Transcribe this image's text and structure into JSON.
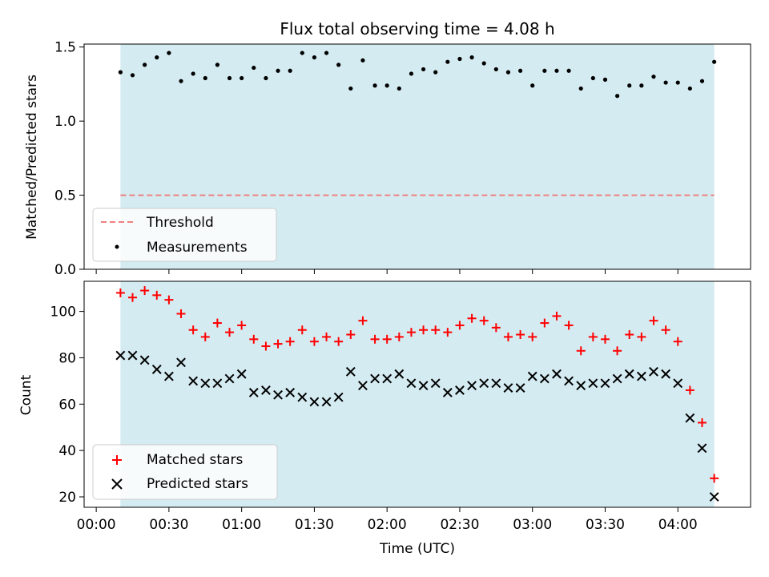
{
  "chart_data": [
    {
      "type": "scatter",
      "title": "Flux total observing time = 4.08 h",
      "xlabel": "",
      "ylabel": "Matched/Predicted stars",
      "ylim": [
        0,
        1.52
      ],
      "yticks": [
        0.0,
        0.5,
        1.0,
        1.5
      ],
      "ytick_labels": [
        "0.0",
        "0.5",
        "1.0",
        "1.5"
      ],
      "grid": false,
      "legend": "lower-left",
      "shaded_region": {
        "x": [
          10,
          255
        ],
        "color": "#d4ebf1"
      },
      "threshold": {
        "name": "Threshold",
        "y": 0.5,
        "x_range": [
          10,
          255
        ],
        "color": "#f08080",
        "style": "dashed"
      },
      "series": [
        {
          "name": "Measurements",
          "marker": "dot",
          "color": "#000000",
          "x": [
            10,
            15,
            20,
            25,
            30,
            35,
            40,
            45,
            50,
            55,
            60,
            65,
            70,
            75,
            80,
            85,
            90,
            95,
            100,
            105,
            110,
            115,
            120,
            125,
            130,
            135,
            140,
            145,
            150,
            155,
            160,
            165,
            170,
            175,
            180,
            185,
            190,
            195,
            200,
            205,
            210,
            215,
            220,
            225,
            230,
            235,
            240,
            245,
            250,
            255
          ],
          "y": [
            1.33,
            1.31,
            1.38,
            1.43,
            1.46,
            1.27,
            1.32,
            1.29,
            1.38,
            1.29,
            1.29,
            1.36,
            1.29,
            1.34,
            1.34,
            1.46,
            1.43,
            1.46,
            1.38,
            1.22,
            1.41,
            1.24,
            1.24,
            1.22,
            1.32,
            1.35,
            1.33,
            1.4,
            1.42,
            1.43,
            1.39,
            1.35,
            1.33,
            1.34,
            1.24,
            1.34,
            1.34,
            1.34,
            1.22,
            1.29,
            1.28,
            1.17,
            1.24,
            1.24,
            1.3,
            1.26,
            1.26,
            1.22,
            1.27,
            1.4
          ]
        }
      ]
    },
    {
      "type": "scatter",
      "title": "",
      "xlabel": "Time (UTC)",
      "ylabel": "Count",
      "ylim": [
        15.5,
        113
      ],
      "yticks": [
        20,
        40,
        60,
        80,
        100
      ],
      "ytick_labels": [
        "20",
        "40",
        "60",
        "80",
        "100"
      ],
      "xlim": [
        -5,
        270
      ],
      "xticks": [
        0,
        30,
        60,
        90,
        120,
        150,
        180,
        210,
        240
      ],
      "xtick_labels": [
        "00:00",
        "00:30",
        "01:00",
        "01:30",
        "02:00",
        "02:30",
        "03:00",
        "03:30",
        "04:00"
      ],
      "grid": false,
      "legend": "lower-left",
      "shaded_region": {
        "x": [
          10,
          255
        ],
        "color": "#d4ebf1"
      },
      "series": [
        {
          "name": "Matched stars",
          "marker": "plus",
          "color": "#ff0000",
          "x": [
            10,
            15,
            20,
            25,
            30,
            35,
            40,
            45,
            50,
            55,
            60,
            65,
            70,
            75,
            80,
            85,
            90,
            95,
            100,
            105,
            110,
            115,
            120,
            125,
            130,
            135,
            140,
            145,
            150,
            155,
            160,
            165,
            170,
            175,
            180,
            185,
            190,
            195,
            200,
            205,
            210,
            215,
            220,
            225,
            230,
            235,
            240,
            245,
            250,
            255
          ],
          "y": [
            108,
            106,
            109,
            107,
            105,
            99,
            92,
            89,
            95,
            91,
            94,
            88,
            85,
            86,
            87,
            92,
            87,
            89,
            87,
            90,
            96,
            88,
            88,
            89,
            91,
            92,
            92,
            91,
            94,
            97,
            96,
            93,
            89,
            90,
            89,
            95,
            98,
            94,
            83,
            89,
            88,
            83,
            90,
            89,
            96,
            92,
            87,
            66,
            52,
            28
          ]
        },
        {
          "name": "Predicted stars",
          "marker": "x",
          "color": "#000000",
          "x": [
            10,
            15,
            20,
            25,
            30,
            35,
            40,
            45,
            50,
            55,
            60,
            65,
            70,
            75,
            80,
            85,
            90,
            95,
            100,
            105,
            110,
            115,
            120,
            125,
            130,
            135,
            140,
            145,
            150,
            155,
            160,
            165,
            170,
            175,
            180,
            185,
            190,
            195,
            200,
            205,
            210,
            215,
            220,
            225,
            230,
            235,
            240,
            245,
            250,
            255
          ],
          "y": [
            81,
            81,
            79,
            75,
            72,
            78,
            70,
            69,
            69,
            71,
            73,
            65,
            66,
            64,
            65,
            63,
            61,
            61,
            63,
            74,
            68,
            71,
            71,
            73,
            69,
            68,
            69,
            65,
            66,
            68,
            69,
            69,
            67,
            67,
            72,
            71,
            73,
            70,
            68,
            69,
            69,
            71,
            73,
            72,
            74,
            73,
            69,
            54,
            41,
            20
          ]
        }
      ]
    }
  ]
}
